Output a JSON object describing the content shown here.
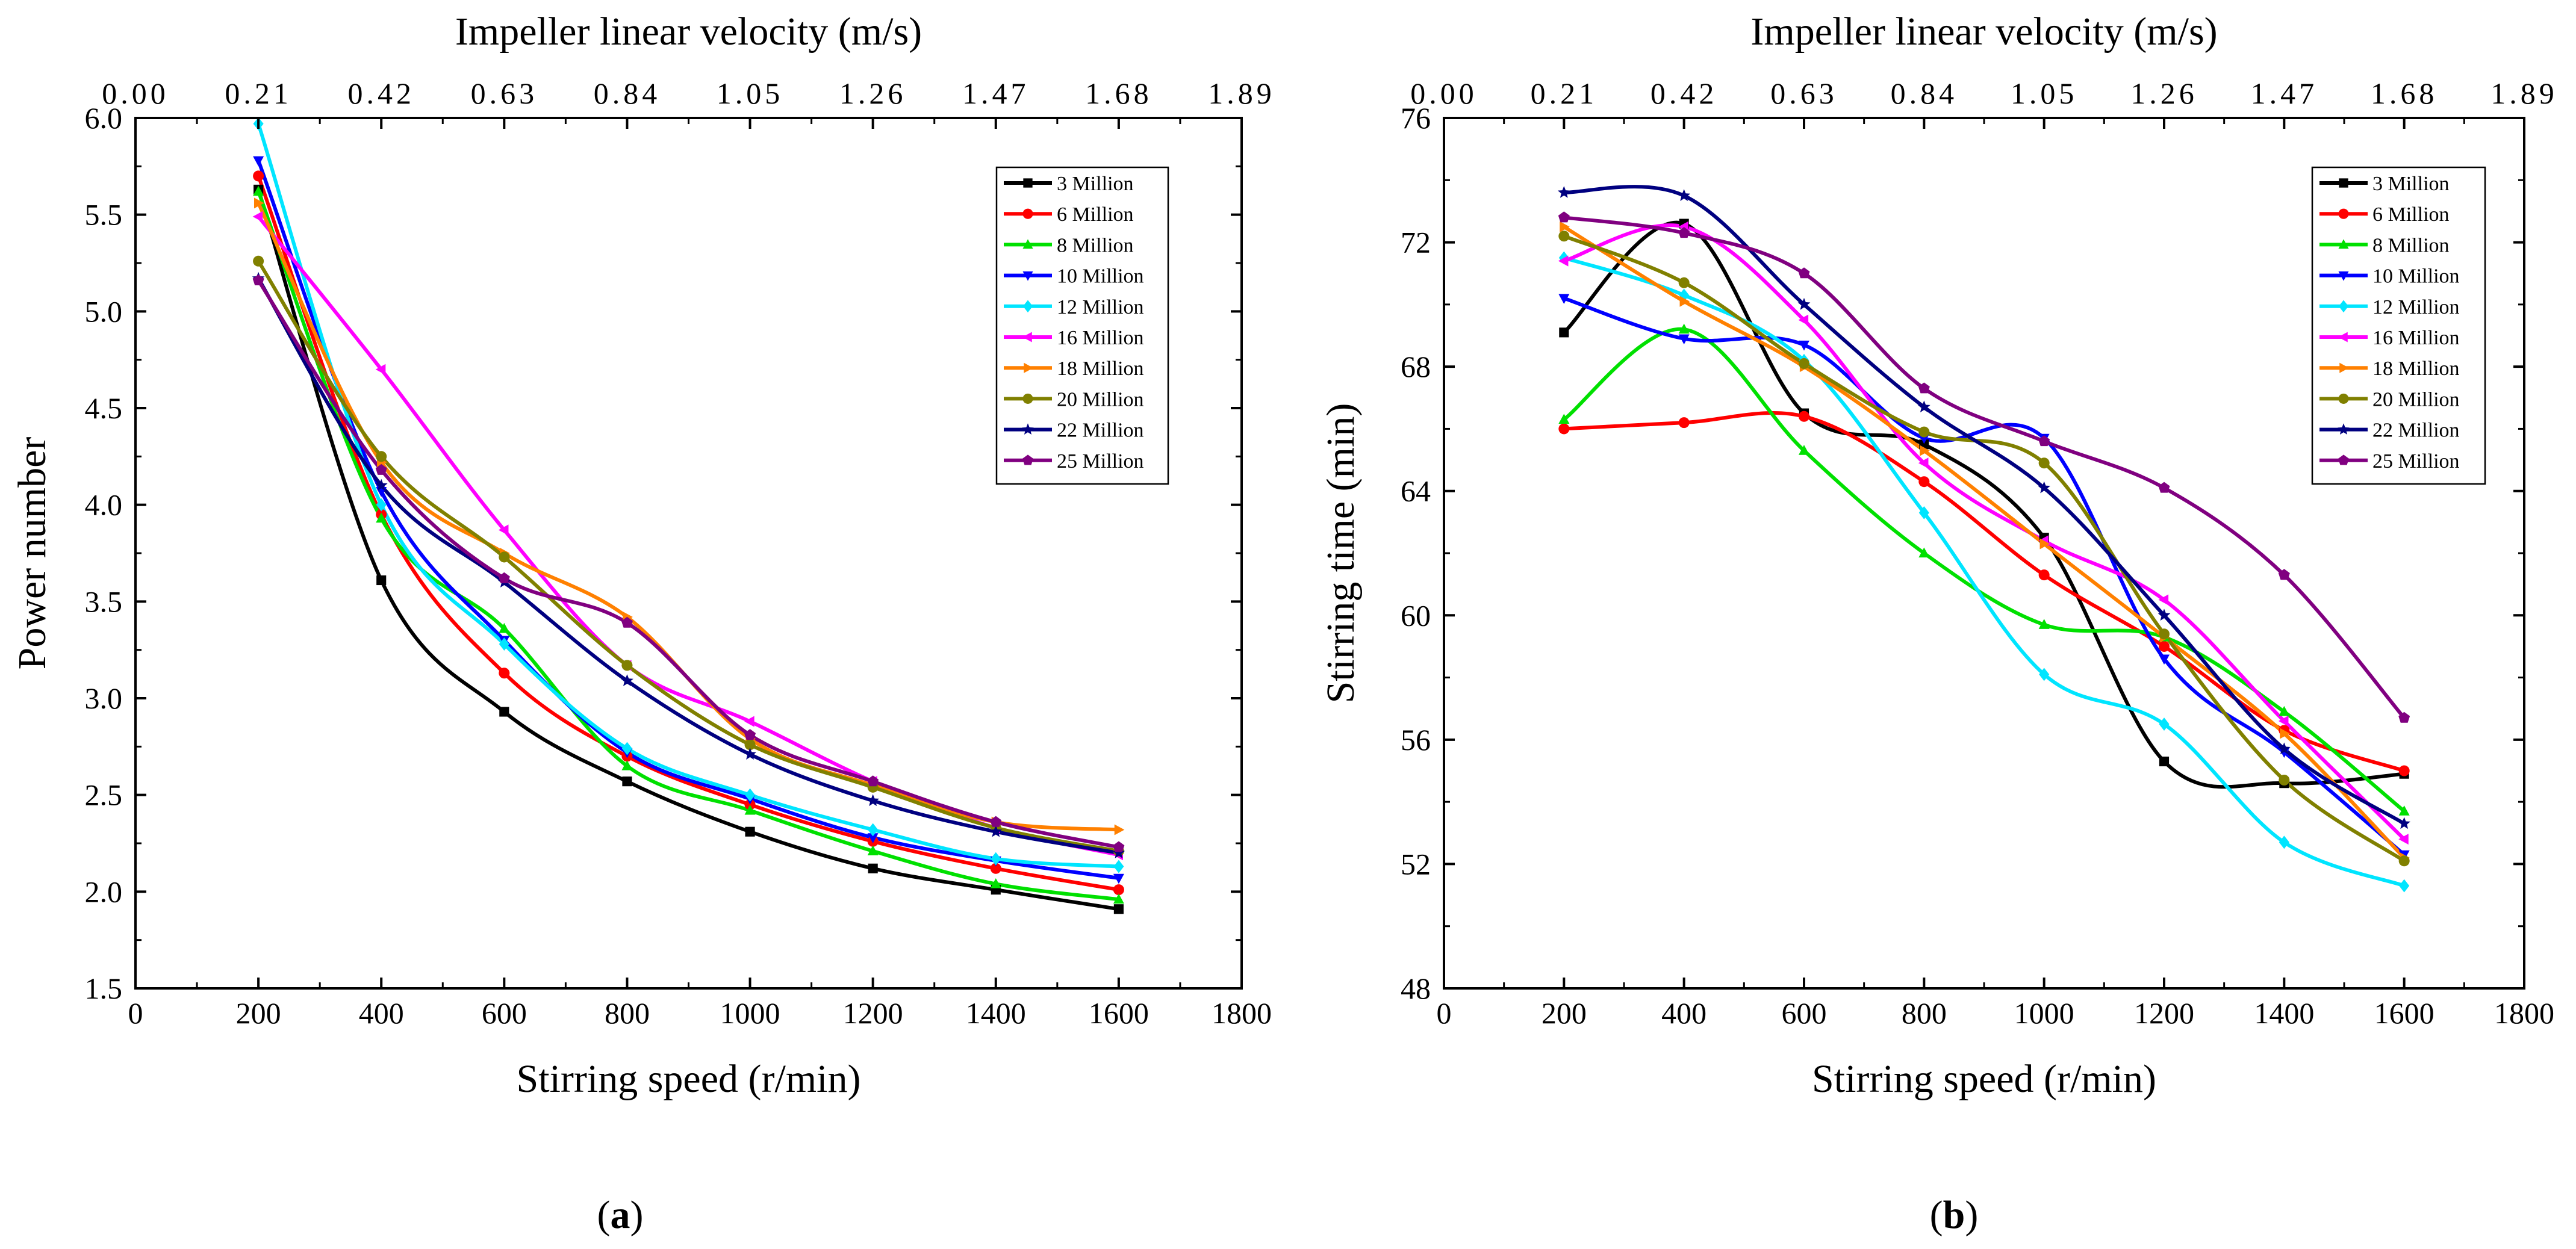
{
  "chart_data": [
    {
      "type": "line",
      "panel_label": "a",
      "title": "",
      "top_xlabel": "Impeller linear velocity  (m/s)",
      "top_xticks": [
        "0.00",
        "0.21",
        "0.42",
        "0.63",
        "0.84",
        "1.05",
        "1.26",
        "1.47",
        "1.68",
        "1.89"
      ],
      "xlabel": "Stirring speed (r/min)",
      "ylabel": "Power number",
      "xlim": [
        0,
        1800
      ],
      "ylim": [
        1.5,
        6.0
      ],
      "xticks": [
        "0",
        "200",
        "400",
        "600",
        "800",
        "1000",
        "1200",
        "1400",
        "1600",
        "1800"
      ],
      "yticks": [
        "1.5",
        "2.0",
        "2.5",
        "3.0",
        "3.5",
        "4.0",
        "4.5",
        "5.0",
        "5.5",
        "6.0"
      ],
      "grid": false,
      "legend_position": "top-right",
      "x": [
        200,
        400,
        600,
        800,
        1000,
        1200,
        1400,
        1600
      ],
      "series": [
        {
          "name": "3 Million",
          "color": "#000000",
          "marker": "square",
          "values": [
            5.63,
            3.61,
            2.93,
            2.57,
            2.31,
            2.12,
            2.01,
            1.91
          ]
        },
        {
          "name": "6 Million",
          "color": "#ff0000",
          "marker": "circle",
          "values": [
            5.7,
            3.95,
            3.13,
            2.7,
            2.45,
            2.26,
            2.12,
            2.01
          ]
        },
        {
          "name": "8 Million",
          "color": "#00e000",
          "marker": "triangle-up",
          "values": [
            5.62,
            3.93,
            3.36,
            2.65,
            2.42,
            2.21,
            2.04,
            1.96
          ]
        },
        {
          "name": "10 Million",
          "color": "#0000ff",
          "marker": "triangle-down",
          "values": [
            5.78,
            4.07,
            3.3,
            2.72,
            2.48,
            2.28,
            2.16,
            2.07
          ]
        },
        {
          "name": "12 Million",
          "color": "#00e5ff",
          "marker": "diamond",
          "values": [
            5.97,
            4.0,
            3.28,
            2.74,
            2.5,
            2.32,
            2.17,
            2.13
          ]
        },
        {
          "name": "16 Million",
          "color": "#ff00ff",
          "marker": "triangle-left",
          "values": [
            5.49,
            4.7,
            3.87,
            3.17,
            2.88,
            2.57,
            2.33,
            2.19
          ]
        },
        {
          "name": "18 Million",
          "color": "#ff8000",
          "marker": "triangle-right",
          "values": [
            5.56,
            4.22,
            3.75,
            3.42,
            2.79,
            2.55,
            2.36,
            2.32
          ]
        },
        {
          "name": "20 Million",
          "color": "#808000",
          "marker": "circle",
          "values": [
            5.26,
            4.25,
            3.73,
            3.17,
            2.76,
            2.54,
            2.33,
            2.21
          ]
        },
        {
          "name": "22 Million",
          "color": "#000080",
          "marker": "star",
          "values": [
            5.17,
            4.1,
            3.6,
            3.09,
            2.71,
            2.47,
            2.31,
            2.2
          ]
        },
        {
          "name": "25 Million",
          "color": "#800080",
          "marker": "pentagon",
          "values": [
            5.16,
            4.18,
            3.62,
            3.39,
            2.81,
            2.57,
            2.36,
            2.23
          ]
        }
      ]
    },
    {
      "type": "line",
      "panel_label": "b",
      "title": "",
      "top_xlabel": "Impeller linear velocity  (m/s)",
      "top_xticks": [
        "0.00",
        "0.21",
        "0.42",
        "0.63",
        "0.84",
        "1.05",
        "1.26",
        "1.47",
        "1.68",
        "1.89"
      ],
      "xlabel": "Stirring speed (r/min)",
      "ylabel": "Stirring time (min)",
      "xlim": [
        0,
        1800
      ],
      "ylim": [
        48,
        76
      ],
      "xticks": [
        "0",
        "200",
        "400",
        "600",
        "800",
        "1000",
        "1200",
        "1400",
        "1600",
        "1800"
      ],
      "yticks": [
        "48",
        "52",
        "56",
        "60",
        "64",
        "68",
        "72",
        "76"
      ],
      "grid": false,
      "legend_position": "top-right",
      "x": [
        200,
        400,
        600,
        800,
        1000,
        1200,
        1400,
        1600
      ],
      "series": [
        {
          "name": "3 Million",
          "color": "#000000",
          "marker": "square",
          "values": [
            69.1,
            72.6,
            66.5,
            65.5,
            62.5,
            55.3,
            54.6,
            54.9
          ]
        },
        {
          "name": "6 Million",
          "color": "#ff0000",
          "marker": "circle",
          "values": [
            66.0,
            66.2,
            66.4,
            64.3,
            61.3,
            59.0,
            56.3,
            55.0
          ]
        },
        {
          "name": "8 Million",
          "color": "#00e000",
          "marker": "triangle-up",
          "values": [
            66.3,
            69.2,
            65.3,
            62.0,
            59.7,
            59.3,
            56.9,
            53.7
          ]
        },
        {
          "name": "10 Million",
          "color": "#0000ff",
          "marker": "triangle-down",
          "values": [
            70.2,
            68.9,
            68.7,
            65.7,
            65.7,
            58.6,
            55.6,
            52.3
          ]
        },
        {
          "name": "12 Million",
          "color": "#00e5ff",
          "marker": "diamond",
          "values": [
            71.5,
            70.3,
            68.2,
            63.3,
            58.1,
            56.5,
            52.7,
            51.3
          ]
        },
        {
          "name": "16 Million",
          "color": "#ff00ff",
          "marker": "triangle-left",
          "values": [
            71.4,
            72.5,
            69.5,
            64.9,
            62.4,
            60.5,
            56.6,
            52.8
          ]
        },
        {
          "name": "18 Million",
          "color": "#ff8000",
          "marker": "triangle-right",
          "values": [
            72.5,
            70.1,
            68.0,
            65.3,
            62.3,
            59.3,
            56.2,
            52.2
          ]
        },
        {
          "name": "20 Million",
          "color": "#808000",
          "marker": "circle",
          "values": [
            72.2,
            70.7,
            68.1,
            65.9,
            64.9,
            59.4,
            54.7,
            52.1
          ]
        },
        {
          "name": "22 Million",
          "color": "#000080",
          "marker": "star",
          "values": [
            73.6,
            73.5,
            70.0,
            66.7,
            64.1,
            60.0,
            55.7,
            53.3
          ]
        },
        {
          "name": "25 Million",
          "color": "#800080",
          "marker": "pentagon",
          "values": [
            72.8,
            72.3,
            71.0,
            67.3,
            65.6,
            64.1,
            61.3,
            56.7
          ]
        }
      ]
    }
  ]
}
